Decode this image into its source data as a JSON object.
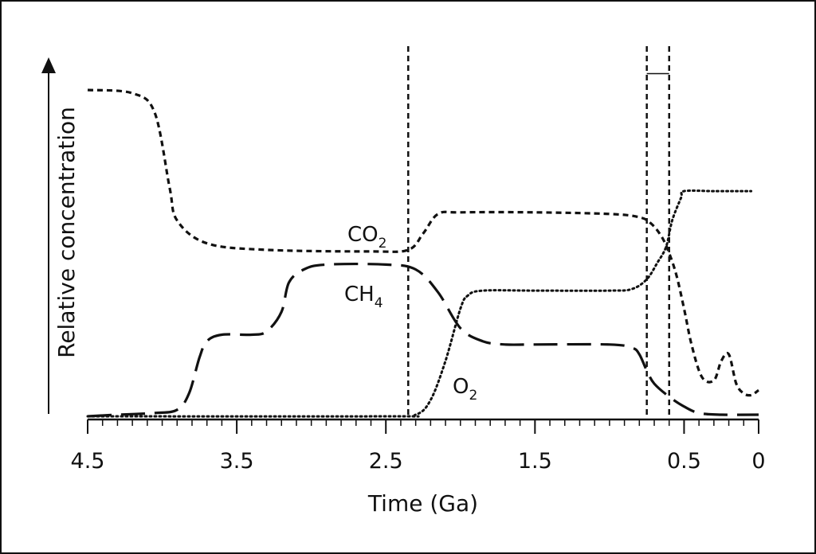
{
  "chart_data": {
    "type": "line",
    "title": "",
    "xlabel": "Time (Ga)",
    "ylabel": "Relative concentration",
    "x_reversed": true,
    "xlim": [
      4.5,
      0
    ],
    "ylim": [
      0,
      1
    ],
    "xticks": [
      "4.5",
      "3.5",
      "2.5",
      "1.5",
      "0.5",
      "0"
    ],
    "xtick_values": [
      4.5,
      3.5,
      2.5,
      1.5,
      0.5,
      0
    ],
    "grid": false,
    "legend": "none (series labelled inline)",
    "series": [
      {
        "name": "CO2",
        "style": "short-dash",
        "label_text": "CO",
        "label_sub": "2",
        "x": [
          4.5,
          4.2,
          4.05,
          3.95,
          3.9,
          3.7,
          3.3,
          2.6,
          2.35,
          2.25,
          2.15,
          2.0,
          1.5,
          1.0,
          0.8,
          0.72,
          0.65,
          0.6,
          0.55,
          0.5,
          0.45,
          0.38,
          0.3,
          0.25,
          0.2,
          0.15,
          0.1,
          0.05,
          0.0
        ],
        "y": [
          1.0,
          0.99,
          0.93,
          0.7,
          0.6,
          0.53,
          0.51,
          0.505,
          0.51,
          0.56,
          0.62,
          0.625,
          0.625,
          0.62,
          0.61,
          0.59,
          0.55,
          0.5,
          0.43,
          0.33,
          0.22,
          0.12,
          0.11,
          0.17,
          0.19,
          0.1,
          0.07,
          0.065,
          0.08
        ]
      },
      {
        "name": "CH4",
        "style": "long-dash",
        "label_text": "CH",
        "label_sub": "4",
        "x": [
          4.5,
          4.3,
          4.05,
          3.9,
          3.82,
          3.75,
          3.7,
          3.6,
          3.4,
          3.3,
          3.2,
          3.15,
          3.05,
          2.9,
          2.5,
          2.3,
          2.15,
          2.0,
          1.85,
          1.7,
          1.5,
          1.0,
          0.85,
          0.8,
          0.75,
          0.7,
          0.6,
          0.5,
          0.4,
          0.25,
          0.0
        ],
        "y": [
          0.0,
          0.005,
          0.01,
          0.02,
          0.07,
          0.18,
          0.23,
          0.25,
          0.25,
          0.26,
          0.32,
          0.41,
          0.45,
          0.465,
          0.465,
          0.45,
          0.38,
          0.27,
          0.23,
          0.22,
          0.22,
          0.22,
          0.21,
          0.19,
          0.14,
          0.1,
          0.06,
          0.03,
          0.01,
          0.005,
          0.005
        ]
      },
      {
        "name": "O2",
        "style": "dotted",
        "label_text": "O",
        "label_sub": "2",
        "x": [
          4.5,
          2.5,
          2.3,
          2.2,
          2.1,
          2.0,
          1.95,
          1.85,
          1.5,
          1.0,
          0.85,
          0.75,
          0.68,
          0.62,
          0.58,
          0.52,
          0.5,
          0.3,
          0.1,
          0.05
        ],
        "y": [
          0.0,
          0.0,
          0.005,
          0.05,
          0.17,
          0.33,
          0.37,
          0.385,
          0.385,
          0.385,
          0.39,
          0.42,
          0.47,
          0.52,
          0.6,
          0.67,
          0.69,
          0.69,
          0.69,
          0.69
        ]
      }
    ],
    "vertical_lines": [
      {
        "x": 2.35,
        "style": "short-dash"
      },
      {
        "x": 0.75,
        "style": "short-dash"
      },
      {
        "x": 0.6,
        "style": "short-dash"
      }
    ],
    "marker_segments": [
      {
        "x": [
          0.75,
          0.6
        ],
        "y": 1.05,
        "note": "short horizontal bar between glaciation lines"
      }
    ]
  }
}
